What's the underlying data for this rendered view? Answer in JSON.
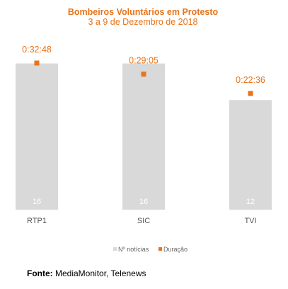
{
  "chart_data": {
    "type": "bar",
    "title": "Bombeiros Voluntários em Protesto",
    "subtitle": "3 a 9 de Dezembro de 2018",
    "categories": [
      "RTP1",
      "SIC",
      "TVI"
    ],
    "series": [
      {
        "name": "Nº notícias",
        "type": "bar",
        "values": [
          16,
          16,
          12
        ],
        "color": "#d9d9d9"
      },
      {
        "name": "Duração",
        "type": "marker",
        "values": [
          "0:32:48",
          "0:29:05",
          "0:22:36"
        ],
        "color": "#e8731a"
      }
    ],
    "ylim_count": [
      0,
      16
    ],
    "grid": false,
    "legend_position": "bottom"
  },
  "source": {
    "label": "Fonte:",
    "text": "MediaMonitor, Telenews"
  }
}
